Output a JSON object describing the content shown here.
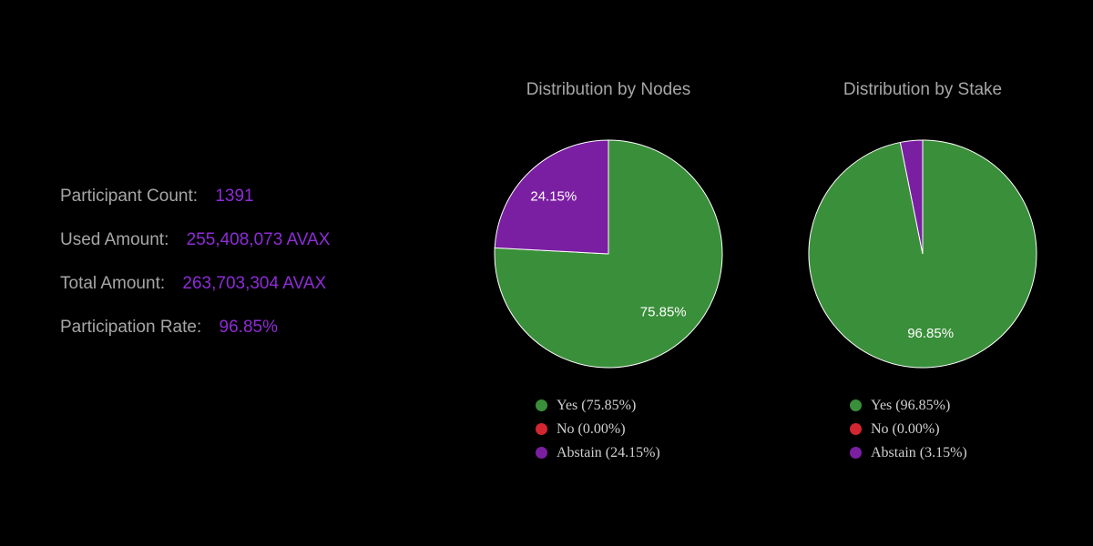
{
  "stats": [
    {
      "label": "Participant Count:",
      "value": "1391"
    },
    {
      "label": "Used Amount:",
      "value": "255,408,073 AVAX"
    },
    {
      "label": "Total Amount:",
      "value": "263,703,304 AVAX"
    },
    {
      "label": "Participation Rate:",
      "value": "96.85%"
    }
  ],
  "colors": {
    "background": "#000000",
    "label_text": "#a6a6a6",
    "value_accent": "#8e2bd6",
    "yes": "#3a8f3a",
    "no": "#d32630",
    "abstain": "#7b1fa2",
    "legend_text": "#d0d0d0"
  },
  "chart_data": [
    {
      "type": "pie",
      "title": "Distribution by Nodes",
      "categories": [
        "Yes",
        "No",
        "Abstain"
      ],
      "values": [
        75.85,
        0.0,
        24.15
      ],
      "slice_labels": [
        "75.85%",
        "",
        "24.15%"
      ],
      "legend": [
        "Yes (75.85%)",
        "No (0.00%)",
        "Abstain (24.15%)"
      ],
      "legend_position": "bottom"
    },
    {
      "type": "pie",
      "title": "Distribution by Stake",
      "categories": [
        "Yes",
        "No",
        "Abstain"
      ],
      "values": [
        96.85,
        0.0,
        3.15
      ],
      "slice_labels": [
        "96.85%",
        "",
        ""
      ],
      "legend": [
        "Yes (96.85%)",
        "No (0.00%)",
        "Abstain (3.15%)"
      ],
      "legend_position": "bottom"
    }
  ]
}
